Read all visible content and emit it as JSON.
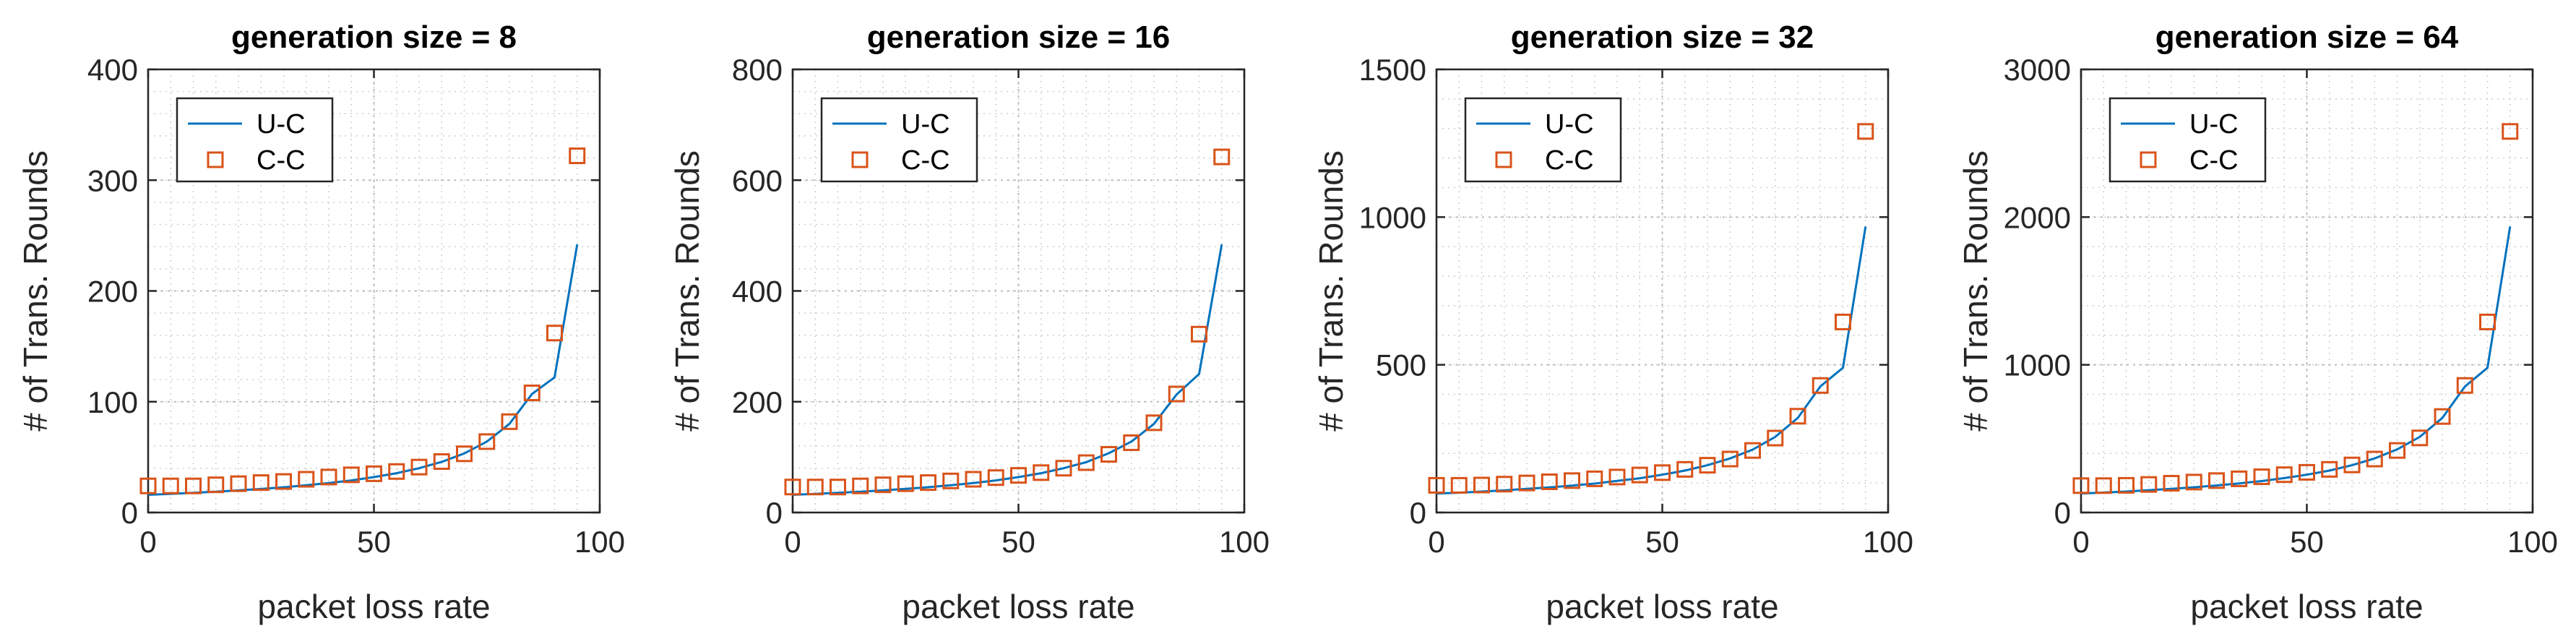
{
  "chart_data": [
    {
      "type": "line+scatter",
      "title": "generation size = 8",
      "xlabel": "packet loss rate",
      "ylabel": "# of Trans. Rounds",
      "xlim": [
        0,
        100
      ],
      "ylim": [
        0,
        400
      ],
      "xticks": [
        0,
        50,
        100
      ],
      "yticks": [
        0,
        100,
        200,
        300,
        400
      ],
      "grid": true,
      "legend_position": "top-left",
      "series": [
        {
          "name": "U-C",
          "style": "line",
          "color": "#0072BD",
          "x": [
            0,
            5,
            10,
            15,
            20,
            25,
            30,
            35,
            40,
            45,
            50,
            55,
            60,
            65,
            70,
            75,
            80,
            85,
            90,
            95
          ],
          "y": [
            16,
            16.8,
            17.8,
            18.8,
            20,
            21.3,
            22.8,
            24.6,
            26.6,
            29,
            32,
            35.5,
            40,
            45.7,
            53.3,
            64,
            80,
            107,
            122,
            242
          ]
        },
        {
          "name": "C-C",
          "style": "square-markers",
          "color": "#D95319",
          "x": [
            0,
            5,
            10,
            15,
            20,
            25,
            30,
            35,
            40,
            45,
            50,
            55,
            60,
            65,
            70,
            75,
            80,
            85,
            90,
            95
          ],
          "y": [
            24,
            24,
            24,
            25,
            26,
            27,
            28,
            30,
            32,
            34,
            35,
            37,
            41,
            46,
            53,
            64,
            82,
            108,
            162,
            322
          ]
        }
      ]
    },
    {
      "type": "line+scatter",
      "title": "generation size = 16",
      "xlabel": "packet loss rate",
      "ylabel": "# of Trans. Rounds",
      "xlim": [
        0,
        100
      ],
      "ylim": [
        0,
        800
      ],
      "xticks": [
        0,
        50,
        100
      ],
      "yticks": [
        0,
        200,
        400,
        600,
        800
      ],
      "grid": true,
      "legend_position": "top-left",
      "series": [
        {
          "name": "U-C",
          "style": "line",
          "color": "#0072BD",
          "x": [
            0,
            5,
            10,
            15,
            20,
            25,
            30,
            35,
            40,
            45,
            50,
            55,
            60,
            65,
            70,
            75,
            80,
            85,
            90,
            95
          ],
          "y": [
            32,
            33.6,
            35.6,
            37.6,
            40,
            42.7,
            45.7,
            49.2,
            53.3,
            58,
            64,
            71,
            80,
            91,
            107,
            128,
            160,
            213,
            250,
            484
          ]
        },
        {
          "name": "C-C",
          "style": "square-markers",
          "color": "#D95319",
          "x": [
            0,
            5,
            10,
            15,
            20,
            25,
            30,
            35,
            40,
            45,
            50,
            55,
            60,
            65,
            70,
            75,
            80,
            85,
            90,
            95
          ],
          "y": [
            46,
            46,
            46,
            48,
            50,
            52,
            54,
            57,
            60,
            63,
            67,
            72,
            80,
            90,
            105,
            126,
            162,
            214,
            322,
            642
          ]
        }
      ]
    },
    {
      "type": "line+scatter",
      "title": "generation size = 32",
      "xlabel": "packet loss rate",
      "ylabel": "# of Trans. Rounds",
      "xlim": [
        0,
        100
      ],
      "ylim": [
        0,
        1500
      ],
      "xticks": [
        0,
        50,
        100
      ],
      "yticks": [
        0,
        500,
        1000,
        1500
      ],
      "grid": true,
      "legend_position": "top-left",
      "series": [
        {
          "name": "U-C",
          "style": "line",
          "color": "#0072BD",
          "x": [
            0,
            5,
            10,
            15,
            20,
            25,
            30,
            35,
            40,
            45,
            50,
            55,
            60,
            65,
            70,
            75,
            80,
            85,
            90,
            95
          ],
          "y": [
            64,
            67,
            71,
            75,
            80,
            85,
            91,
            98,
            107,
            116,
            128,
            142,
            160,
            183,
            213,
            256,
            320,
            427,
            490,
            968
          ]
        },
        {
          "name": "C-C",
          "style": "square-markers",
          "color": "#D95319",
          "x": [
            0,
            5,
            10,
            15,
            20,
            25,
            30,
            35,
            40,
            45,
            50,
            55,
            60,
            65,
            70,
            75,
            80,
            85,
            90,
            95
          ],
          "y": [
            92,
            92,
            93,
            96,
            100,
            104,
            108,
            114,
            120,
            127,
            135,
            146,
            160,
            181,
            210,
            252,
            326,
            430,
            645,
            1290
          ]
        }
      ]
    },
    {
      "type": "line+scatter",
      "title": "generation size = 64",
      "xlabel": "packet loss rate",
      "ylabel": "# of Trans. Rounds",
      "xlim": [
        0,
        100
      ],
      "ylim": [
        0,
        3000
      ],
      "xticks": [
        0,
        50,
        100
      ],
      "yticks": [
        0,
        1000,
        2000,
        3000
      ],
      "grid": true,
      "legend_position": "top-left",
      "series": [
        {
          "name": "U-C",
          "style": "line",
          "color": "#0072BD",
          "x": [
            0,
            5,
            10,
            15,
            20,
            25,
            30,
            35,
            40,
            45,
            50,
            55,
            60,
            65,
            70,
            75,
            80,
            85,
            90,
            95
          ],
          "y": [
            128,
            135,
            142,
            151,
            160,
            171,
            183,
            197,
            213,
            233,
            256,
            284,
            320,
            366,
            427,
            512,
            640,
            853,
            980,
            1936
          ]
        },
        {
          "name": "C-C",
          "style": "square-markers",
          "color": "#D95319",
          "x": [
            0,
            5,
            10,
            15,
            20,
            25,
            30,
            35,
            40,
            45,
            50,
            55,
            60,
            65,
            70,
            75,
            80,
            85,
            90,
            95
          ],
          "y": [
            182,
            182,
            184,
            190,
            198,
            206,
            216,
            228,
            242,
            256,
            272,
            292,
            322,
            362,
            420,
            505,
            650,
            860,
            1290,
            2580
          ]
        }
      ]
    }
  ]
}
